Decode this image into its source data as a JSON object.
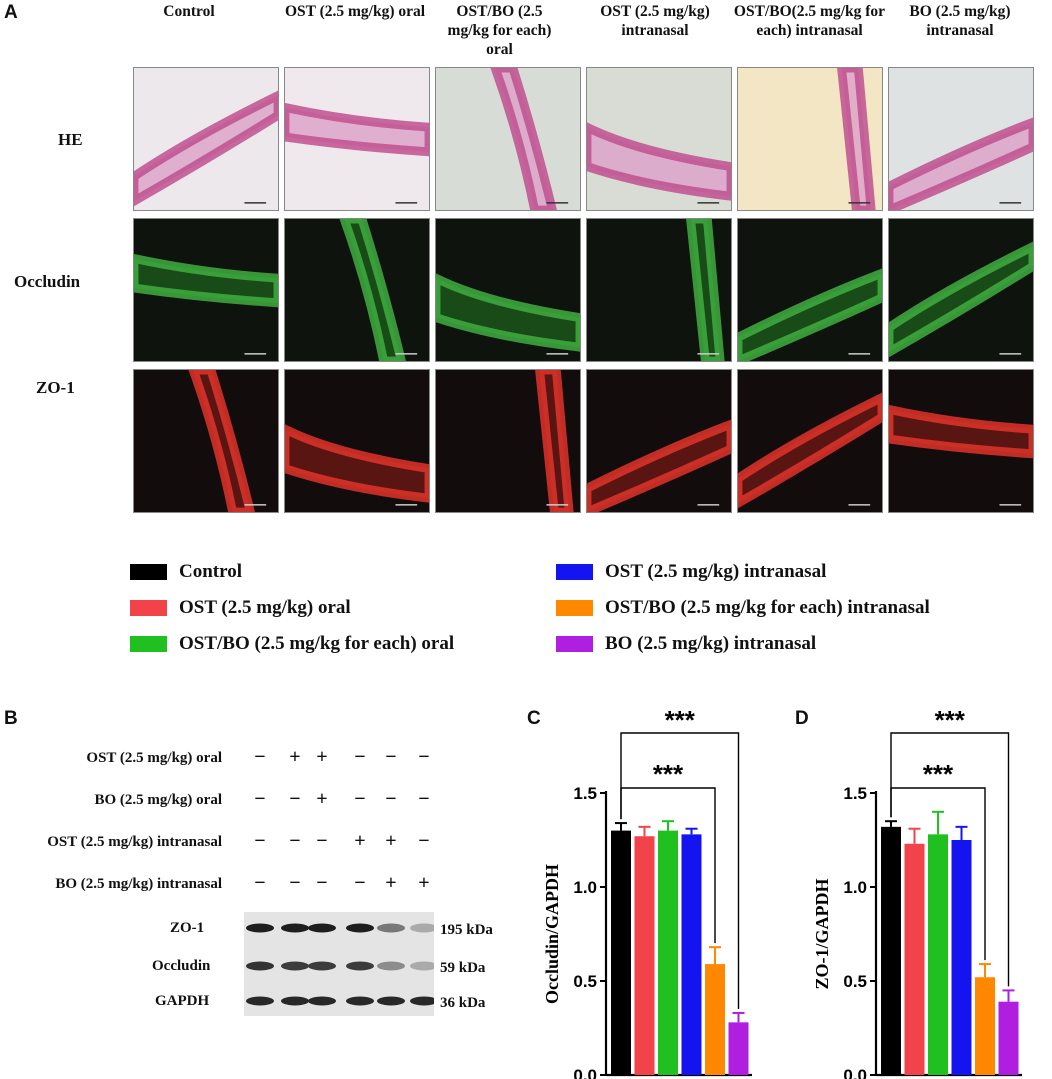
{
  "panels": {
    "a": "A",
    "b": "B",
    "c": "C",
    "d": "D"
  },
  "columns": [
    "Control",
    "OST (2.5 mg/kg) oral",
    "OST/BO (2.5 mg/kg for each) oral",
    "OST (2.5 mg/kg) intranasal",
    "OST/BO(2.5 mg/kg for each) intranasal",
    "BO (2.5 mg/kg) intranasal"
  ],
  "rows": [
    "HE",
    "Occludin",
    "ZO-1"
  ],
  "legend": [
    {
      "label": "Control",
      "color": "#000000"
    },
    {
      "label": "OST (2.5 mg/kg) oral",
      "color": "#f2424a"
    },
    {
      "label": "OST/BO (2.5 mg/kg for each) oral",
      "color": "#1fc01f"
    },
    {
      "label": "OST  (2.5 mg/kg) intranasal",
      "color": "#1414f0"
    },
    {
      "label": "OST/BO (2.5 mg/kg for each) intranasal",
      "color": "#ff8800"
    },
    {
      "label": "BO (2.5 mg/kg) intranasal",
      "color": "#b01ee0"
    }
  ],
  "western_blot": {
    "treatments": [
      {
        "label": "OST (2.5 mg/kg) oral",
        "signs": [
          "−",
          "+",
          "+",
          "−",
          "−",
          "−"
        ]
      },
      {
        "label": "BO (2.5 mg/kg) oral",
        "signs": [
          "−",
          "−",
          "+",
          "−",
          "−",
          "−"
        ]
      },
      {
        "label": "OST (2.5 mg/kg) intranasal",
        "signs": [
          "−",
          "−",
          "−",
          "+",
          "+",
          "−"
        ]
      },
      {
        "label": "BO (2.5 mg/kg) intranasal",
        "signs": [
          "−",
          "−",
          "−",
          "−",
          "+",
          "+"
        ]
      }
    ],
    "bands": [
      {
        "label": "ZO-1",
        "kda": "195 kDa",
        "intensity": [
          1,
          1,
          1,
          1,
          0.55,
          0.3
        ]
      },
      {
        "label": "Occludin",
        "kda": "59 kDa",
        "intensity": [
          0.9,
          0.85,
          0.85,
          0.85,
          0.45,
          0.3
        ]
      },
      {
        "label": "GAPDH",
        "kda": "36 kDa",
        "intensity": [
          0.95,
          0.95,
          0.95,
          0.95,
          0.95,
          0.95
        ]
      }
    ]
  },
  "chart_data": [
    {
      "type": "bar",
      "ylabel": "Occludin/GAPDH",
      "ylim": [
        0,
        1.5
      ],
      "yticks": [
        "0.0",
        "0.5",
        "1.0",
        "1.5"
      ],
      "categories": [
        "Control",
        "OST (2.5 mg/kg) oral",
        "OST/BO (2.5 mg/kg for each) oral",
        "OST  (2.5 mg/kg) intranasal",
        "OST/BO (2.5 mg/kg for each) intranasal",
        "BO (2.5 mg/kg) intranasal"
      ],
      "values": [
        1.3,
        1.27,
        1.3,
        1.28,
        0.59,
        0.28
      ],
      "errors": [
        0.04,
        0.05,
        0.05,
        0.03,
        0.09,
        0.05
      ],
      "colors": [
        "#000000",
        "#f2424a",
        "#1fc01f",
        "#1414f0",
        "#ff8800",
        "#b01ee0"
      ],
      "significance": [
        {
          "from": 0,
          "to": 4,
          "label": "***"
        },
        {
          "from": 0,
          "to": 5,
          "label": "***"
        }
      ]
    },
    {
      "type": "bar",
      "ylabel": "ZO-1/GAPDH",
      "ylim": [
        0,
        1.5
      ],
      "yticks": [
        "0.0",
        "0.5",
        "1.0",
        "1.5"
      ],
      "categories": [
        "Control",
        "OST (2.5 mg/kg) oral",
        "OST/BO (2.5 mg/kg for each) oral",
        "OST  (2.5 mg/kg) intranasal",
        "OST/BO (2.5 mg/kg for each) intranasal",
        "BO (2.5 mg/kg) intranasal"
      ],
      "values": [
        1.32,
        1.23,
        1.28,
        1.25,
        0.52,
        0.39
      ],
      "errors": [
        0.03,
        0.08,
        0.12,
        0.07,
        0.07,
        0.06
      ],
      "colors": [
        "#000000",
        "#f2424a",
        "#1fc01f",
        "#1414f0",
        "#ff8800",
        "#b01ee0"
      ],
      "significance": [
        {
          "from": 0,
          "to": 4,
          "label": "***"
        },
        {
          "from": 0,
          "to": 5,
          "label": "***"
        }
      ]
    }
  ]
}
